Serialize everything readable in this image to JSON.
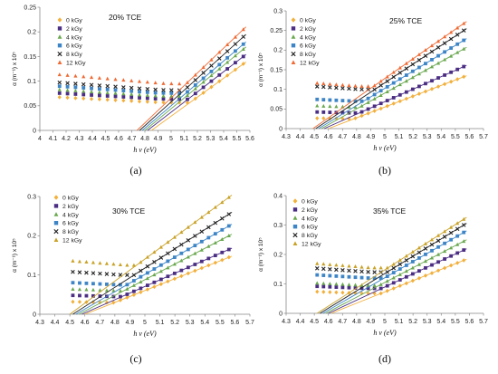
{
  "chart_data": [
    {
      "type": "scatter",
      "panel": "a",
      "caption": "(a)",
      "title": "20% TCE",
      "xlabel": "h v (eV)",
      "ylabel": "α (m⁻¹) x 10⁵",
      "xlim": [
        4,
        5.6
      ],
      "ylim": [
        0,
        0.25
      ],
      "xticks": [
        "4",
        "4.1",
        "4.2",
        "4.3",
        "4.4",
        "4.5",
        "4.6",
        "4.7",
        "4.8",
        "4.9",
        "5",
        "5.1",
        "5.2",
        "5.3",
        "5.4",
        "5.5",
        "5.6"
      ],
      "xtick_values": [
        4,
        4.1,
        4.2,
        4.3,
        4.4,
        4.5,
        4.6,
        4.7,
        4.8,
        4.9,
        5,
        5.1,
        5.2,
        5.3,
        5.4,
        5.5,
        5.6
      ],
      "yticks": [
        "0",
        "0.05",
        "0.1",
        "0.15",
        "0.2",
        "0.25"
      ],
      "ytick_values": [
        0,
        0.05,
        0.1,
        0.15,
        0.2,
        0.25
      ],
      "x_range": [
        4.15,
        5.55
      ],
      "legend_position": "top-left",
      "series": [
        {
          "name": "0 kGy",
          "color": "#f2b03c",
          "marker": "diamond",
          "flat": 0.057,
          "dip": 4.9,
          "edge": 0.135,
          "eg": 4.85
        },
        {
          "name": "2 kGy",
          "color": "#4b2e83",
          "marker": "square",
          "flat": 0.064,
          "dip": 4.9,
          "edge": 0.15,
          "eg": 4.82
        },
        {
          "name": "4 kGy",
          "color": "#6aa84f",
          "marker": "triangle",
          "flat": 0.07,
          "dip": 4.9,
          "edge": 0.165,
          "eg": 4.8
        },
        {
          "name": "6 kGy",
          "color": "#3d85c6",
          "marker": "square",
          "flat": 0.076,
          "dip": 4.9,
          "edge": 0.175,
          "eg": 4.78
        },
        {
          "name": "8 kGy",
          "color": "#222222",
          "marker": "x",
          "flat": 0.082,
          "dip": 4.92,
          "edge": 0.19,
          "eg": 4.76
        },
        {
          "name": "12 kGy",
          "color": "#ef6b35",
          "marker": "triangle",
          "flat": 0.095,
          "dip": 4.95,
          "edge": 0.205,
          "eg": 4.74
        }
      ]
    },
    {
      "type": "scatter",
      "panel": "b",
      "caption": "(b)",
      "title": "25% TCE",
      "xlabel": "h v (eV)",
      "ylabel": "α (m⁻¹) x 10⁵",
      "xlim": [
        4.3,
        5.7
      ],
      "ylim": [
        0,
        0.3
      ],
      "xticks": [
        "4.3",
        "4.4",
        "4.5",
        "4.6",
        "4.7",
        "4.8",
        "4.9",
        "5",
        "5.1",
        "5.2",
        "5.3",
        "5.4",
        "5.5",
        "5.6",
        "5.7"
      ],
      "xtick_values": [
        4.3,
        4.4,
        4.5,
        4.6,
        4.7,
        4.8,
        4.9,
        5,
        5.1,
        5.2,
        5.3,
        5.4,
        5.5,
        5.6,
        5.7
      ],
      "yticks": [
        "0",
        "0.05",
        "0.1",
        "0.15",
        "0.2",
        "0.25",
        "0.3"
      ],
      "ytick_values": [
        0,
        0.05,
        0.1,
        0.15,
        0.2,
        0.25,
        0.3
      ],
      "x_range": [
        4.52,
        5.56
      ],
      "legend_position": "top-left",
      "series": [
        {
          "name": "0 kGy",
          "color": "#f2b03c",
          "marker": "diamond",
          "flat": 0.025,
          "dip": 4.75,
          "edge": 0.132,
          "eg": 4.6
        },
        {
          "name": "2 kGy",
          "color": "#4b2e83",
          "marker": "square",
          "flat": 0.04,
          "dip": 4.75,
          "edge": 0.158,
          "eg": 4.57
        },
        {
          "name": "4 kGy",
          "color": "#6aa84f",
          "marker": "triangle",
          "flat": 0.055,
          "dip": 4.75,
          "edge": 0.203,
          "eg": 4.55
        },
        {
          "name": "6 kGy",
          "color": "#3d85c6",
          "marker": "square",
          "flat": 0.07,
          "dip": 4.78,
          "edge": 0.225,
          "eg": 4.53
        },
        {
          "name": "8 kGy",
          "color": "#222222",
          "marker": "x",
          "flat": 0.1,
          "dip": 4.82,
          "edge": 0.25,
          "eg": 4.51
        },
        {
          "name": "12 kGy",
          "color": "#ef6b35",
          "marker": "triangle",
          "flat": 0.108,
          "dip": 4.82,
          "edge": 0.268,
          "eg": 4.49
        }
      ]
    },
    {
      "type": "scatter",
      "panel": "c",
      "caption": "(c)",
      "title": "30% TCE",
      "xlabel": "h v (eV)",
      "ylabel": "α (m⁻¹) x 10⁵",
      "xlim": [
        4.3,
        5.7
      ],
      "ylim": [
        0,
        0.3
      ],
      "xticks": [
        "4.3",
        "4.4",
        "4.5",
        "4.6",
        "4.7",
        "4.8",
        "4.9",
        "5",
        "5.1",
        "5.2",
        "5.3",
        "5.4",
        "5.5",
        "5.6",
        "5.7"
      ],
      "xtick_values": [
        4.3,
        4.4,
        4.5,
        4.6,
        4.7,
        4.8,
        4.9,
        5,
        5.1,
        5.2,
        5.3,
        5.4,
        5.5,
        5.6,
        5.7
      ],
      "yticks": [
        "0",
        "0.1",
        "0.2",
        "0.3"
      ],
      "ytick_values": [
        0,
        0.1,
        0.2,
        0.3
      ],
      "x_range": [
        4.52,
        5.56
      ],
      "legend_position": "top-left",
      "series": [
        {
          "name": "0 kGy",
          "color": "#f2b03c",
          "marker": "diamond",
          "flat": 0.03,
          "dip": 4.75,
          "edge": 0.145,
          "eg": 4.6
        },
        {
          "name": "2 kGy",
          "color": "#4b2e83",
          "marker": "square",
          "flat": 0.045,
          "dip": 4.8,
          "edge": 0.165,
          "eg": 4.58
        },
        {
          "name": "4 kGy",
          "color": "#6aa84f",
          "marker": "triangle",
          "flat": 0.06,
          "dip": 4.8,
          "edge": 0.2,
          "eg": 4.56
        },
        {
          "name": "6 kGy",
          "color": "#3d85c6",
          "marker": "square",
          "flat": 0.075,
          "dip": 4.82,
          "edge": 0.225,
          "eg": 4.54
        },
        {
          "name": "8 kGy",
          "color": "#222222",
          "marker": "x",
          "flat": 0.1,
          "dip": 4.85,
          "edge": 0.255,
          "eg": 4.52
        },
        {
          "name": "12 kGy",
          "color": "#c9a227",
          "marker": "triangle",
          "flat": 0.125,
          "dip": 4.88,
          "edge": 0.298,
          "eg": 4.5
        }
      ]
    },
    {
      "type": "scatter",
      "panel": "d",
      "caption": "(d)",
      "title": "35% TCE",
      "xlabel": "h v (eV)",
      "ylabel": "α (m⁻¹) x 10⁵",
      "xlim": [
        4.3,
        5.7
      ],
      "ylim": [
        0,
        0.4
      ],
      "xticks": [
        "4.3",
        "4.4",
        "4.5",
        "4.6",
        "4.7",
        "4.8",
        "4.9",
        "5",
        "5.1",
        "5.2",
        "5.3",
        "5.4",
        "5.5",
        "5.6",
        "5.7"
      ],
      "xtick_values": [
        4.3,
        4.4,
        4.5,
        4.6,
        4.7,
        4.8,
        4.9,
        5,
        5.1,
        5.2,
        5.3,
        5.4,
        5.5,
        5.6,
        5.7
      ],
      "yticks": [
        "0",
        "0.1",
        "0.2",
        "0.3",
        "0.4"
      ],
      "ytick_values": [
        0,
        0.1,
        0.2,
        0.3,
        0.4
      ],
      "x_range": [
        4.52,
        5.56
      ],
      "legend_position": "top-left",
      "series": [
        {
          "name": "0 kGy",
          "color": "#f2b03c",
          "marker": "diamond",
          "flat": 0.068,
          "dip": 4.85,
          "edge": 0.18,
          "eg": 4.62
        },
        {
          "name": "2 kGy",
          "color": "#4b2e83",
          "marker": "square",
          "flat": 0.085,
          "dip": 4.85,
          "edge": 0.215,
          "eg": 4.6
        },
        {
          "name": "4 kGy",
          "color": "#6aa84f",
          "marker": "triangle",
          "flat": 0.095,
          "dip": 4.85,
          "edge": 0.245,
          "eg": 4.58
        },
        {
          "name": "6 kGy",
          "color": "#3d85c6",
          "marker": "square",
          "flat": 0.12,
          "dip": 4.88,
          "edge": 0.275,
          "eg": 4.56
        },
        {
          "name": "8 kGy",
          "color": "#222222",
          "marker": "x",
          "flat": 0.14,
          "dip": 4.9,
          "edge": 0.3,
          "eg": 4.54
        },
        {
          "name": "12 kGy",
          "color": "#c9a227",
          "marker": "triangle",
          "flat": 0.155,
          "dip": 4.9,
          "edge": 0.32,
          "eg": 4.52
        }
      ]
    }
  ]
}
